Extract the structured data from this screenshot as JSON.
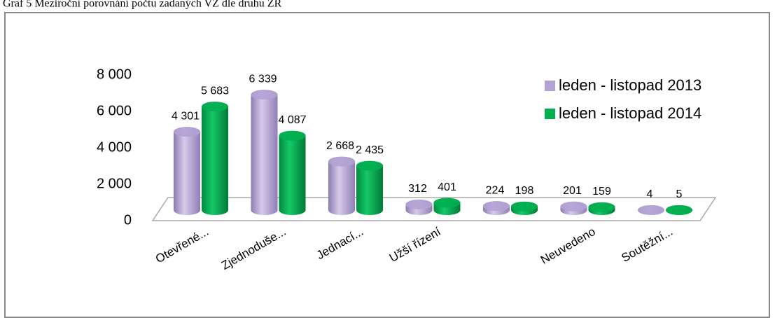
{
  "chart_data": {
    "type": "bar3d",
    "title": "Graf 5 Meziroční porovnání počtu zadaných VZ dle druhu ZŘ",
    "categories": [
      "Otevřené...",
      "Zjednoduše...",
      "Jednací...",
      "Užší řízení",
      null,
      "Neuvedeno",
      "Soutěžní..."
    ],
    "series": [
      {
        "name": "leden - listopad 2013",
        "color": "#b3a2d4",
        "values": [
          4301,
          6339,
          2668,
          312,
          224,
          201,
          4
        ],
        "value_labels": [
          "4 301",
          "6 339",
          "2 668",
          "312",
          "224",
          "201",
          "4"
        ]
      },
      {
        "name": "leden - listopad 2014",
        "color": "#00b050",
        "values": [
          5683,
          4087,
          2435,
          401,
          198,
          159,
          5
        ],
        "value_labels": [
          "5 683",
          "4 087",
          "2 435",
          "401",
          "198",
          "159",
          "5"
        ]
      }
    ],
    "ylim": [
      0,
      8000
    ],
    "yticks": [
      0,
      {
        "value": 2000,
        "label": "2 000"
      },
      {
        "value": 4000,
        "label": "4 000"
      },
      {
        "value": 6000,
        "label": "6 000"
      },
      {
        "value": 8000,
        "label": "8 000"
      }
    ],
    "grid": false,
    "legend": "upper right"
  }
}
